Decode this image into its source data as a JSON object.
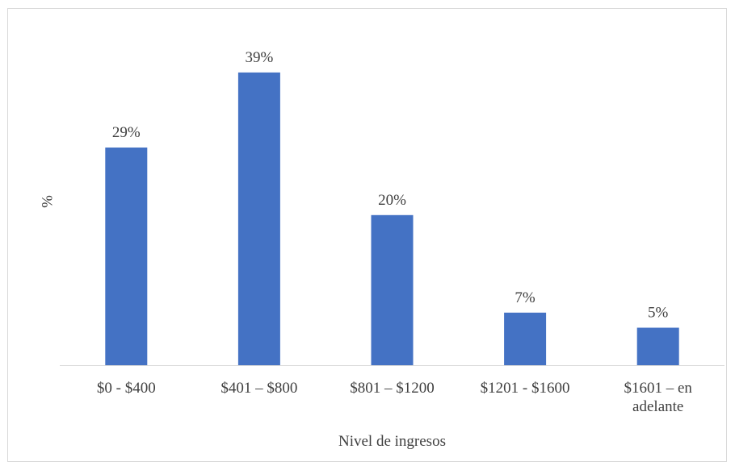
{
  "chart_data": {
    "type": "bar",
    "title": "",
    "xlabel": "Nivel de ingresos",
    "ylabel": "%",
    "categories": [
      [
        "$0 - $400"
      ],
      [
        "$401 – $800"
      ],
      [
        "$801 – $1200"
      ],
      [
        "$1201 - $1600"
      ],
      [
        "$1601 – en",
        "adelante"
      ]
    ],
    "values": [
      29,
      39,
      20,
      7,
      5
    ],
    "data_labels": [
      "29%",
      "39%",
      "20%",
      "7%",
      "5%"
    ],
    "ylim": [
      0,
      42
    ],
    "grid": false,
    "legend": "none",
    "colors": {
      "bar": "#4472c4",
      "axis": "#d9d9d9",
      "text": "#404040"
    }
  }
}
